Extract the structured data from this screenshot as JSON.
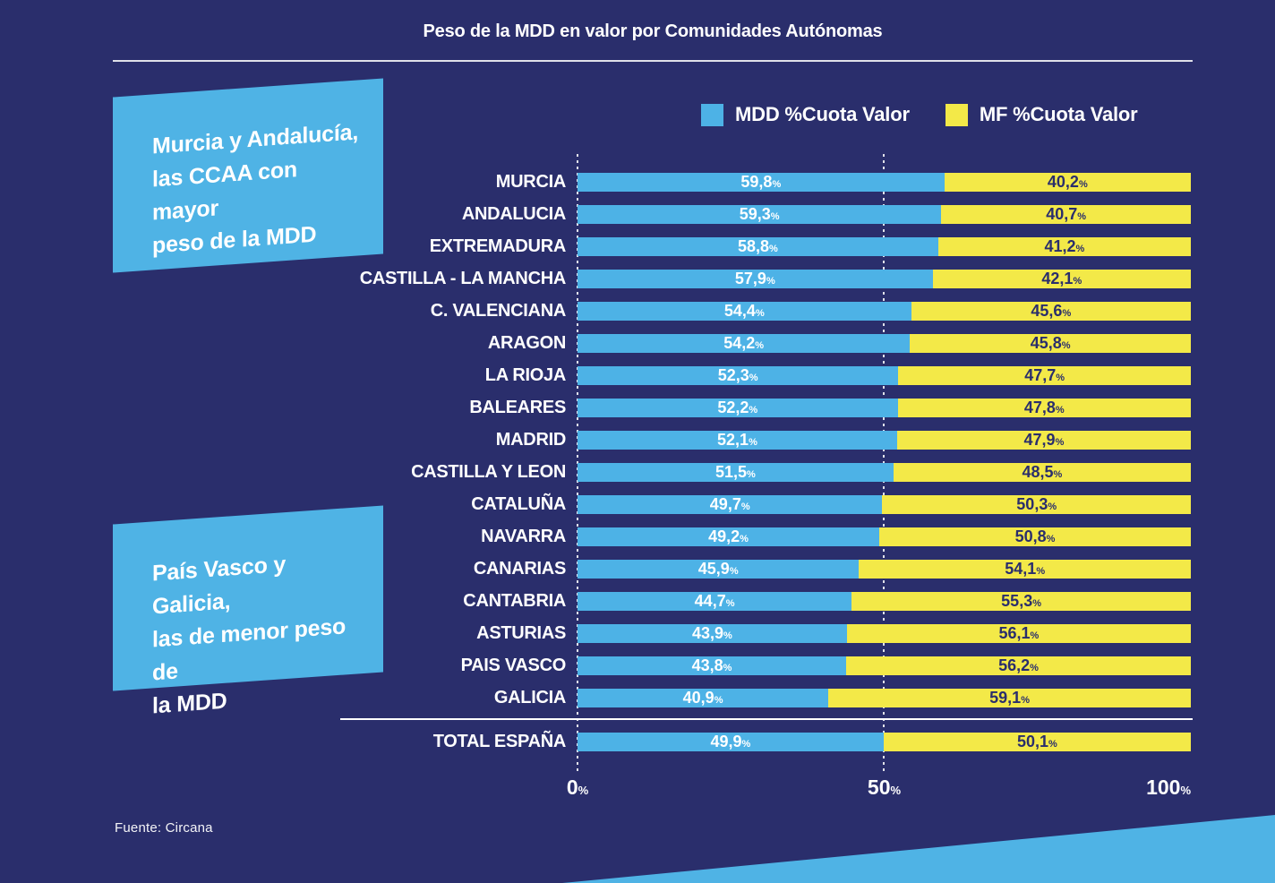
{
  "title": "Peso de la MDD en valor por Comunidades Autónomas",
  "legend": {
    "items": [
      {
        "name": "mdd",
        "label": "MDD %Cuota Valor",
        "color": "#4db2e6"
      },
      {
        "name": "mf",
        "label": "MF %Cuota Valor",
        "color": "#f3e948"
      }
    ]
  },
  "callouts": {
    "top": "Murcia y Andalucía,\nlas CCAA con mayor\npeso de la MDD",
    "bottom": "País Vasco y Galicia,\nlas de menor peso de\nla MDD"
  },
  "chart_data": {
    "type": "bar",
    "variant": "horizontal-stacked",
    "title": "Peso de la MDD en valor por Comunidades Autónomas",
    "categories": [
      "MURCIA",
      "ANDALUCIA",
      "EXTREMADURA",
      "CASTILLA - LA MANCHA",
      "C. VALENCIANA",
      "ARAGON",
      "LA RIOJA",
      "BALEARES",
      "MADRID",
      "CASTILLA Y LEON",
      "CATALUÑA",
      "NAVARRA",
      "CANARIAS",
      "CANTABRIA",
      "ASTURIAS",
      "PAIS VASCO",
      "GALICIA"
    ],
    "series": [
      {
        "name": "MDD %Cuota Valor",
        "color": "#4db2e6",
        "values": [
          59.8,
          59.3,
          58.8,
          57.9,
          54.4,
          54.2,
          52.3,
          52.2,
          52.1,
          51.5,
          49.7,
          49.2,
          45.9,
          44.7,
          43.9,
          43.8,
          40.9
        ]
      },
      {
        "name": "MF %Cuota Valor",
        "color": "#f3e948",
        "values": [
          40.2,
          40.7,
          41.2,
          42.1,
          45.6,
          45.8,
          47.7,
          47.8,
          47.9,
          48.5,
          50.3,
          50.8,
          54.1,
          55.3,
          56.1,
          56.2,
          59.1
        ]
      }
    ],
    "total_row": {
      "category": "TOTAL ESPAÑA",
      "values": [
        49.9,
        50.1
      ]
    },
    "xlim": [
      0,
      100
    ],
    "x_ticks": [
      0,
      50,
      100
    ],
    "gridlines_at": [
      0,
      50
    ],
    "value_suffix": "%",
    "decimal_separator": ",",
    "legend_position": "top-right"
  },
  "source": "Fuente: Circana",
  "colors": {
    "background": "#2a2e6c",
    "mdd": "#4db2e6",
    "mf": "#f3e948",
    "callout": "#4fb3e5",
    "wedge": "#4fb3e5"
  }
}
